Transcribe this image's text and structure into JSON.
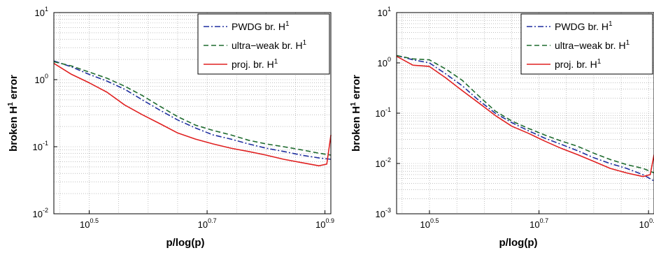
{
  "chart_data": [
    {
      "type": "line",
      "xlabel": "p/log(p)",
      "ylabel_main": "broken H",
      "ylabel_sup": "1",
      "ylabel_tail": " error",
      "x_scale": "log",
      "y_scale": "log",
      "xlim": [
        2.754,
        8.128
      ],
      "ylim": [
        0.01,
        10
      ],
      "x_ticks": [
        {
          "base": "10",
          "exp": "0.5",
          "value": 3.162
        },
        {
          "base": "10",
          "exp": "0.7",
          "value": 5.012
        },
        {
          "base": "10",
          "exp": "0.9",
          "value": 7.943
        }
      ],
      "y_ticks": [
        {
          "base": "10",
          "exp": "1",
          "value": 10
        },
        {
          "base": "10",
          "exp": "0",
          "value": 1
        },
        {
          "base": "10",
          "exp": "-1",
          "value": 0.1
        },
        {
          "base": "10",
          "exp": "-2",
          "value": 0.01
        }
      ],
      "grid": true,
      "legend_position": "top-right",
      "series": [
        {
          "name": "PWDG br. H",
          "name_sup": "1",
          "color": "#1f2f9f",
          "style": "dashdot",
          "x": [
            2.754,
            2.95,
            3.16,
            3.39,
            3.63,
            3.89,
            4.17,
            4.47,
            4.79,
            5.13,
            5.5,
            5.89,
            6.31,
            6.76,
            7.24,
            7.76,
            8.13
          ],
          "y": [
            1.9,
            1.55,
            1.2,
            0.95,
            0.72,
            0.5,
            0.35,
            0.25,
            0.19,
            0.15,
            0.13,
            0.11,
            0.095,
            0.085,
            0.075,
            0.068,
            0.065
          ]
        },
        {
          "name": "ultra−weak br. H",
          "name_sup": "1",
          "color": "#1e6b2e",
          "style": "dashed",
          "x": [
            2.754,
            2.95,
            3.16,
            3.39,
            3.63,
            3.89,
            4.17,
            4.47,
            4.79,
            5.13,
            5.5,
            5.89,
            6.31,
            6.76,
            7.24,
            7.76,
            8.13
          ],
          "y": [
            1.85,
            1.6,
            1.3,
            1.05,
            0.8,
            0.58,
            0.4,
            0.28,
            0.21,
            0.175,
            0.15,
            0.125,
            0.11,
            0.1,
            0.09,
            0.08,
            0.075
          ]
        },
        {
          "name": "proj. br. H",
          "name_sup": "1",
          "color": "#e02020",
          "style": "solid",
          "x": [
            2.754,
            2.95,
            3.16,
            3.39,
            3.63,
            3.89,
            4.17,
            4.47,
            4.79,
            5.13,
            5.5,
            5.89,
            6.31,
            6.76,
            7.24,
            7.76,
            8.0,
            8.13
          ],
          "y": [
            1.75,
            1.2,
            0.9,
            0.65,
            0.42,
            0.3,
            0.22,
            0.16,
            0.13,
            0.11,
            0.095,
            0.085,
            0.075,
            0.065,
            0.058,
            0.052,
            0.055,
            0.15
          ]
        }
      ]
    },
    {
      "type": "line",
      "xlabel": "p/log(p)",
      "ylabel_main": "broken H",
      "ylabel_sup": "1",
      "ylabel_tail": " error",
      "x_scale": "log",
      "y_scale": "log",
      "xlim": [
        2.754,
        8.128
      ],
      "ylim": [
        0.001,
        10
      ],
      "x_ticks": [
        {
          "base": "10",
          "exp": "0.5",
          "value": 3.162
        },
        {
          "base": "10",
          "exp": "0.7",
          "value": 5.012
        },
        {
          "base": "10",
          "exp": "0.9",
          "value": 7.943
        }
      ],
      "y_ticks": [
        {
          "base": "10",
          "exp": "1",
          "value": 10
        },
        {
          "base": "10",
          "exp": "0",
          "value": 1
        },
        {
          "base": "10",
          "exp": "-1",
          "value": 0.1
        },
        {
          "base": "10",
          "exp": "-2",
          "value": 0.01
        },
        {
          "base": "10",
          "exp": "-3",
          "value": 0.001
        }
      ],
      "grid": true,
      "legend_position": "top-right",
      "series": [
        {
          "name": "PWDG br. H",
          "name_sup": "1",
          "color": "#1f2f9f",
          "style": "dashdot",
          "x": [
            2.754,
            2.95,
            3.16,
            3.39,
            3.63,
            3.89,
            4.17,
            4.47,
            4.79,
            5.13,
            5.5,
            5.89,
            6.31,
            6.76,
            7.24,
            7.76,
            8.13
          ],
          "y": [
            1.4,
            1.15,
            1.0,
            0.6,
            0.35,
            0.18,
            0.1,
            0.065,
            0.045,
            0.032,
            0.024,
            0.018,
            0.013,
            0.01,
            0.008,
            0.006,
            0.0045
          ]
        },
        {
          "name": "ultra−weak br. H",
          "name_sup": "1",
          "color": "#1e6b2e",
          "style": "dashed",
          "x": [
            2.754,
            2.95,
            3.16,
            3.39,
            3.63,
            3.89,
            4.17,
            4.47,
            4.79,
            5.13,
            5.5,
            5.89,
            6.31,
            6.76,
            7.24,
            7.76,
            8.13
          ],
          "y": [
            1.4,
            1.2,
            1.15,
            0.75,
            0.45,
            0.22,
            0.11,
            0.07,
            0.05,
            0.037,
            0.028,
            0.022,
            0.016,
            0.012,
            0.0095,
            0.008,
            0.0065
          ]
        },
        {
          "name": "proj. br. H",
          "name_sup": "1",
          "color": "#e02020",
          "style": "solid",
          "x": [
            2.754,
            2.95,
            3.16,
            3.39,
            3.63,
            3.89,
            4.17,
            4.47,
            4.79,
            5.13,
            5.5,
            5.89,
            6.31,
            6.76,
            7.24,
            7.76,
            8.0,
            8.13
          ],
          "y": [
            1.35,
            0.9,
            0.85,
            0.5,
            0.28,
            0.16,
            0.09,
            0.055,
            0.04,
            0.028,
            0.02,
            0.015,
            0.011,
            0.008,
            0.0065,
            0.0055,
            0.006,
            0.015
          ]
        }
      ]
    }
  ]
}
